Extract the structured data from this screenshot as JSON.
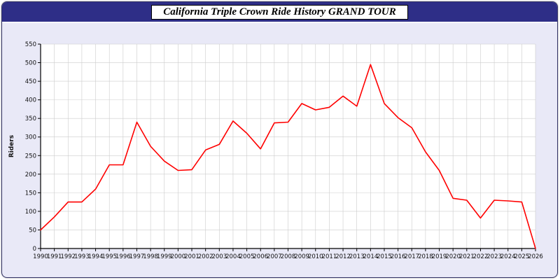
{
  "header": {
    "title": "California Triple Crown Ride History GRAND TOUR"
  },
  "colors": {
    "header_bg": "#2e2e87",
    "page_bg": "#e9e9f7",
    "plot_bg": "#ffffff",
    "grid": "#cccccc",
    "axis": "#000000",
    "line": "#ff0000",
    "tick_text": "#111111"
  },
  "chart_data": {
    "type": "line",
    "title": "California Triple Crown Ride History GRAND TOUR",
    "xlabel": "",
    "ylabel": "Riders",
    "x": [
      1990,
      1991,
      1992,
      1993,
      1994,
      1995,
      1996,
      1997,
      1998,
      1999,
      2000,
      2001,
      2002,
      2003,
      2004,
      2005,
      2006,
      2007,
      2008,
      2009,
      2010,
      2011,
      2012,
      2013,
      2014,
      2015,
      2016,
      2017,
      2018,
      2019,
      2020,
      2021,
      2022,
      2023,
      2024,
      2025,
      2026
    ],
    "series": [
      {
        "name": "Riders",
        "values": [
          50,
          85,
          125,
          125,
          160,
          225,
          225,
          340,
          275,
          235,
          210,
          212,
          265,
          280,
          343,
          310,
          268,
          338,
          340,
          390,
          373,
          380,
          410,
          383,
          495,
          390,
          352,
          325,
          260,
          210,
          135,
          130,
          82,
          130,
          128,
          125,
          0
        ]
      }
    ],
    "ylim": [
      0,
      550
    ],
    "ytick_step": 50,
    "grid": true,
    "legend": "none"
  }
}
